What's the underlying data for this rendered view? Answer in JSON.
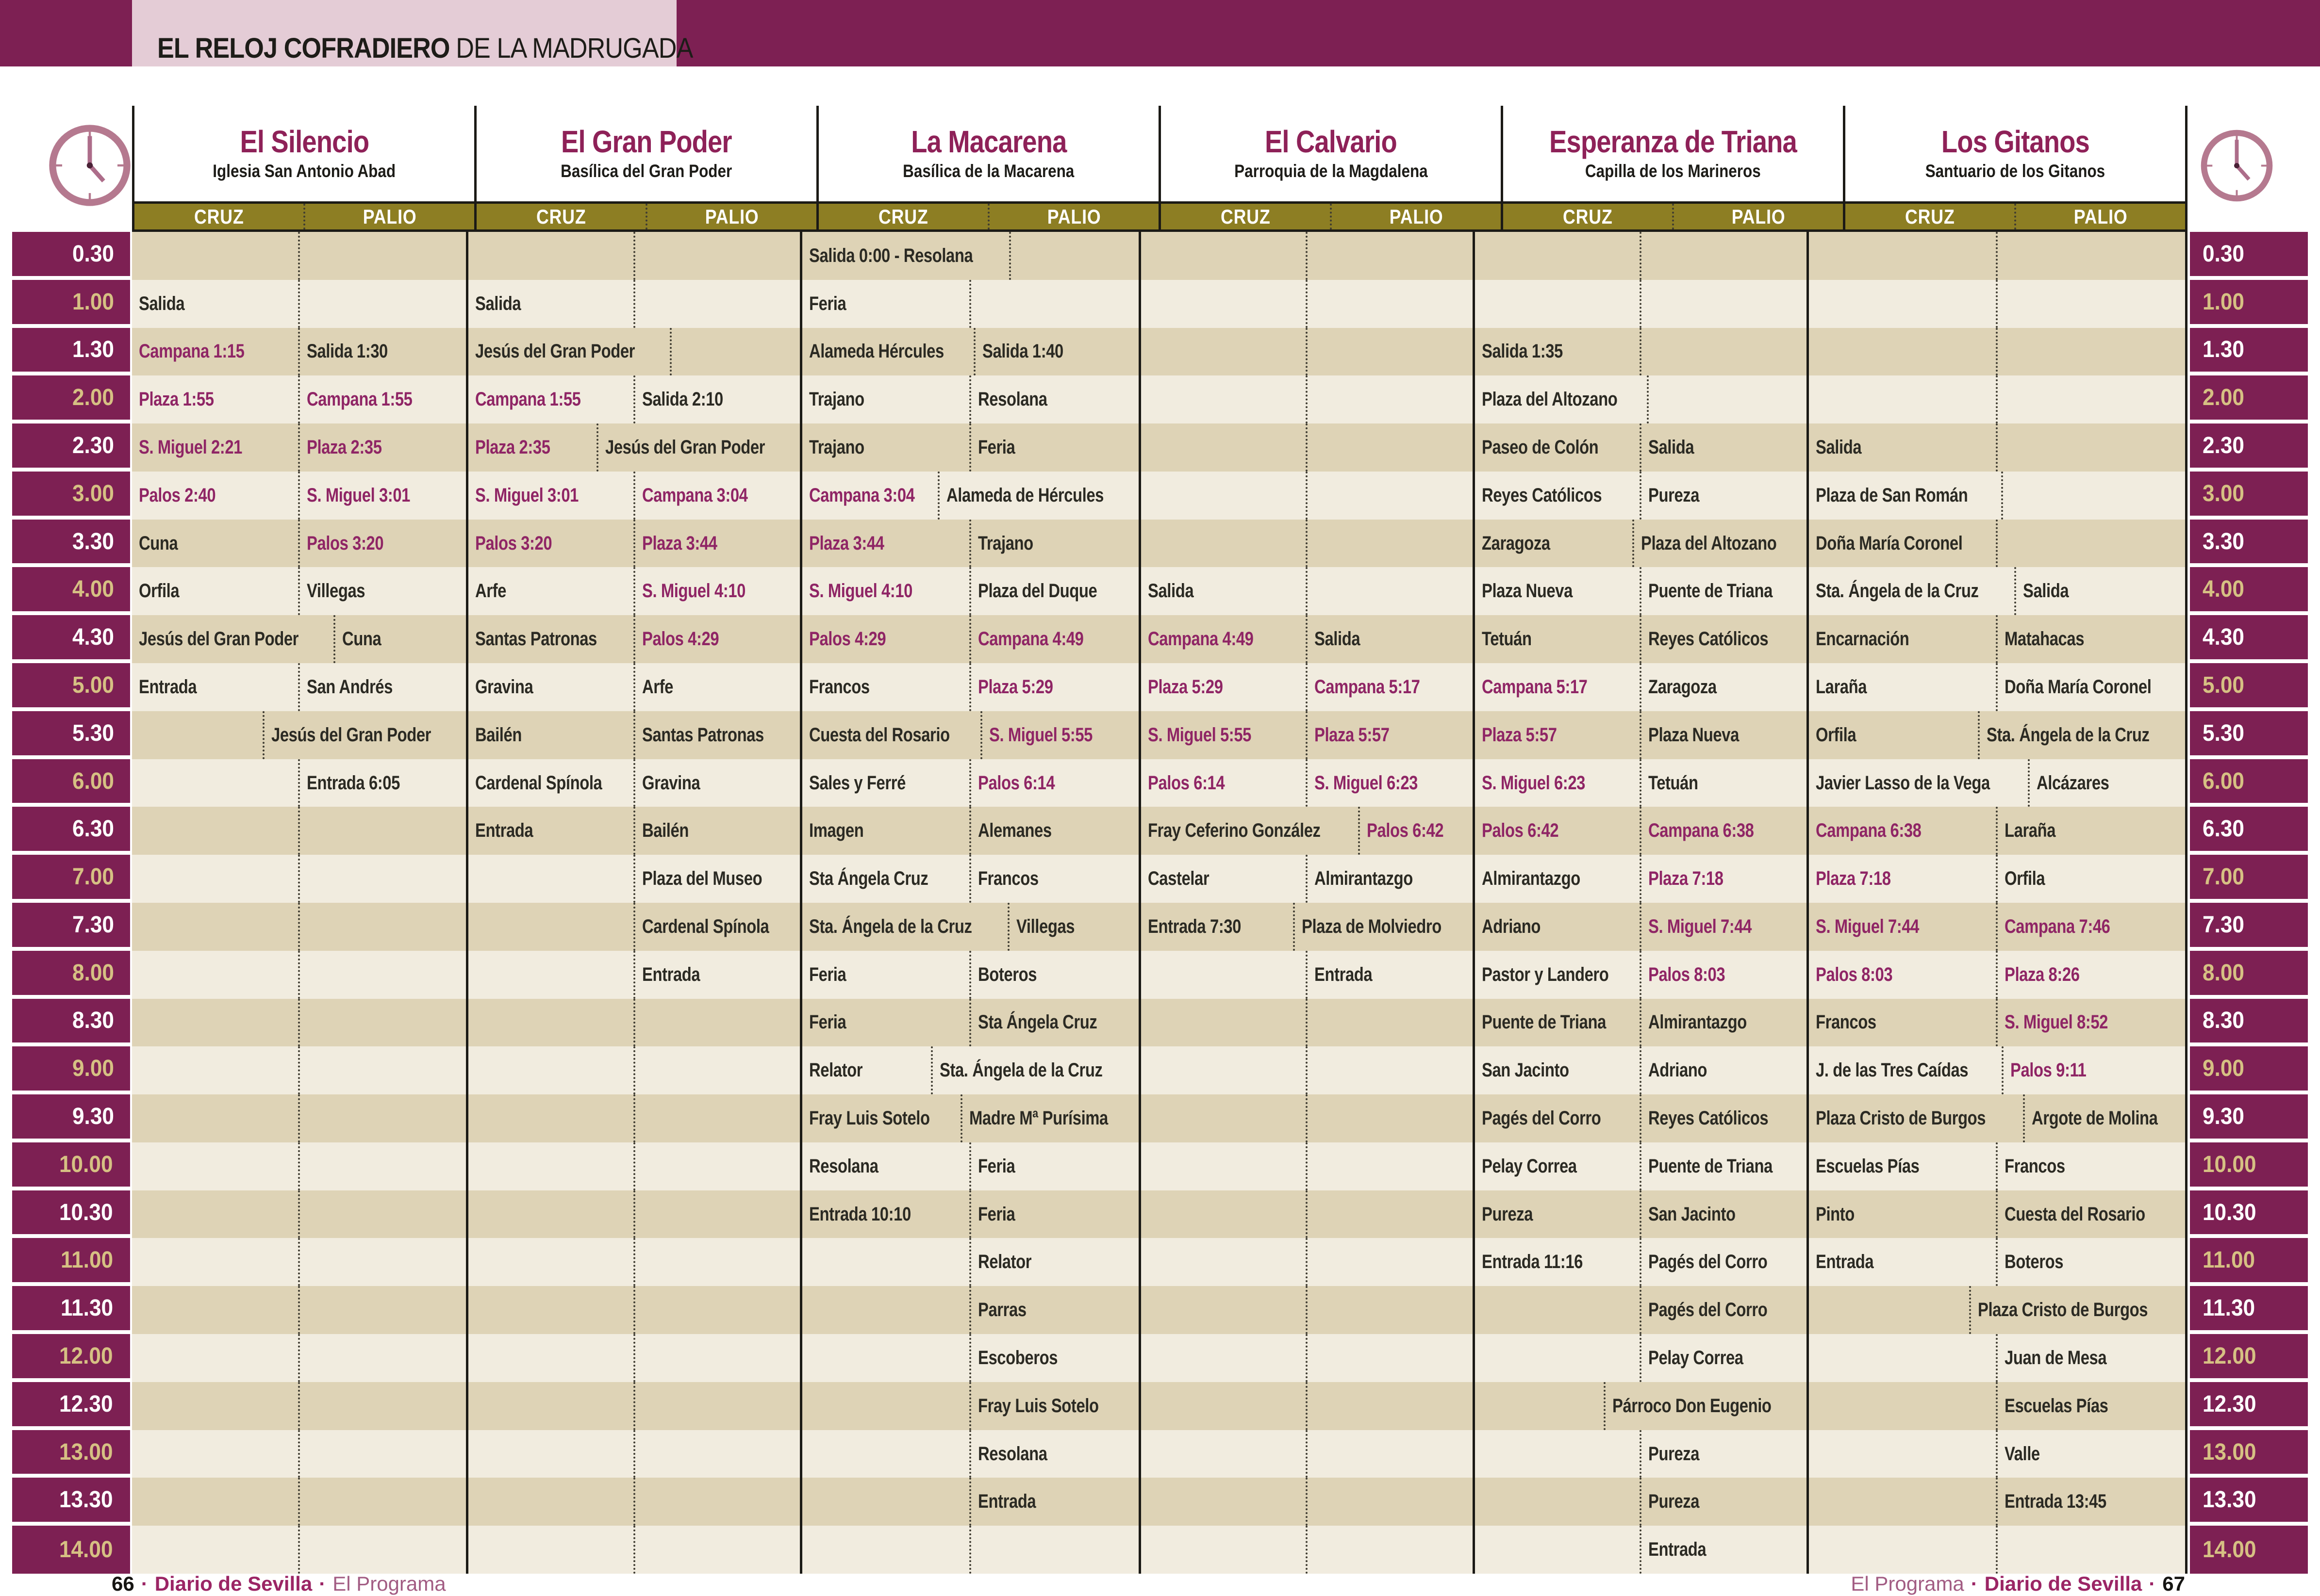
{
  "page_title": {
    "bold": "EL RELOJ COFRADIERO",
    "rest": "DE LA MADRUGADA"
  },
  "column_headers": {
    "cruz": "CRUZ",
    "palio": "PALIO"
  },
  "times": [
    "0.30",
    "1.00",
    "1.30",
    "2.00",
    "2.30",
    "3.00",
    "3.30",
    "4.00",
    "4.30",
    "5.00",
    "5.30",
    "6.00",
    "6.30",
    "7.00",
    "7.30",
    "8.00",
    "8.30",
    "9.00",
    "9.30",
    "10.00",
    "10.30",
    "11.00",
    "11.30",
    "12.00",
    "12.30",
    "13.00",
    "13.30",
    "14.00"
  ],
  "groups": [
    {
      "title": "El Silencio",
      "church": "Iglesia San Antonio Abad",
      "cruz": [
        "",
        "Salida",
        "Campana 1:15",
        "Plaza 1:55",
        "S. Miguel 2:21",
        "Palos 2:40",
        "Cuna",
        "Orfila",
        "Jesús del Gran Poder",
        "Entrada",
        "",
        "",
        "",
        "",
        "",
        "",
        "",
        "",
        "",
        "",
        "",
        "",
        "",
        "",
        "",
        "",
        "",
        ""
      ],
      "palio": [
        "",
        "",
        "Salida 1:30",
        "Campana 1:55",
        "Plaza 2:35",
        "S. Miguel 3:01",
        "Palos 3:20",
        "Villegas",
        "Cuna",
        "San Andrés",
        "Jesús del Gran Poder",
        "Entrada 6:05",
        "",
        "",
        "",
        "",
        "",
        "",
        "",
        "",
        "",
        "",
        "",
        "",
        "",
        "",
        "",
        ""
      ]
    },
    {
      "title": "El Gran Poder",
      "church": "Basílica del Gran Poder",
      "cruz": [
        "",
        "Salida",
        "Jesús del Gran Poder",
        "Campana 1:55",
        "Plaza 2:35",
        "S. Miguel 3:01",
        "Palos 3:20",
        "Arfe",
        "Santas Patronas",
        "Gravina",
        "Bailén",
        "Cardenal Spínola",
        "Entrada",
        "",
        "",
        "",
        "",
        "",
        "",
        "",
        "",
        "",
        "",
        "",
        "",
        "",
        "",
        ""
      ],
      "palio": [
        "",
        "",
        "",
        "Salida 2:10",
        "Jesús del Gran Poder",
        "Campana 3:04",
        "Plaza 3:44",
        "S. Miguel 4:10",
        "Palos 4:29",
        "Arfe",
        "Santas Patronas",
        "Gravina",
        "Bailén",
        "Plaza del Museo",
        "Cardenal Spínola",
        "Entrada",
        "",
        "",
        "",
        "",
        "",
        "",
        "",
        "",
        "",
        "",
        "",
        ""
      ]
    },
    {
      "title": "La Macarena",
      "church": "Basílica de la Macarena",
      "cruz": [
        "Salida 0:00 - Resolana",
        "Feria",
        "Alameda Hércules",
        "Trajano",
        "Trajano",
        "Campana 3:04",
        "Plaza 3:44",
        "S. Miguel 4:10",
        "Palos 4:29",
        "Francos",
        "Cuesta del Rosario",
        "Sales y Ferré",
        "Imagen",
        "Sta Ángela Cruz",
        "Sta. Ángela de la Cruz",
        "Feria",
        "Feria",
        "Relator",
        "Fray Luis Sotelo",
        "Resolana",
        "Entrada 10:10",
        "",
        "",
        "",
        "",
        "",
        "",
        ""
      ],
      "palio": [
        "",
        "",
        "Salida 1:40",
        "Resolana",
        "Feria",
        "Alameda de Hércules",
        "Trajano",
        "Plaza del Duque",
        "Campana 4:49",
        "Plaza 5:29",
        "S. Miguel 5:55",
        "Palos 6:14",
        "Alemanes",
        "Francos",
        "Villegas",
        "Boteros",
        "Sta Ángela Cruz",
        "Sta. Ángela de la Cruz",
        "Madre Mª Purísima",
        "Feria",
        "Feria",
        "Relator",
        "Parras",
        "Escoberos",
        "Fray Luis Sotelo",
        "Resolana",
        "Entrada",
        ""
      ]
    },
    {
      "title": "El Calvario",
      "church": "Parroquia de la Magdalena",
      "cruz": [
        "",
        "",
        "",
        "",
        "",
        "",
        "",
        "Salida",
        "Campana 4:49",
        "Plaza 5:29",
        "S. Miguel 5:55",
        "Palos 6:14",
        "Fray Ceferino González",
        "Castelar",
        "Entrada 7:30",
        "",
        "",
        "",
        "",
        "",
        "",
        "",
        "",
        "",
        "",
        "",
        "",
        ""
      ],
      "palio": [
        "",
        "",
        "",
        "",
        "",
        "",
        "",
        "",
        "Salida",
        "Campana 5:17",
        "Plaza 5:57",
        "S. Miguel 6:23",
        "Palos 6:42",
        "Almirantazgo",
        "Plaza de Molviedro",
        "Entrada",
        "",
        "",
        "",
        "",
        "",
        "",
        "",
        "",
        "",
        "",
        "",
        ""
      ]
    },
    {
      "title": "Esperanza de Triana",
      "church": "Capilla de los Marineros",
      "cruz": [
        "",
        "",
        "Salida 1:35",
        "Plaza del Altozano",
        "Paseo de Colón",
        "Reyes Católicos",
        "Zaragoza",
        "Plaza Nueva",
        "Tetuán",
        "Campana 5:17",
        "Plaza 5:57",
        "S. Miguel 6:23",
        "Palos 6:42",
        "Almirantazgo",
        "Adriano",
        "Pastor y Landero",
        "Puente de Triana",
        "San Jacinto",
        "Pagés del Corro",
        "Pelay Correa",
        "Pureza",
        "Entrada 11:16",
        "",
        "",
        "",
        "",
        "",
        ""
      ],
      "palio": [
        "",
        "",
        "",
        "",
        "Salida",
        "Pureza",
        "Plaza del Altozano",
        "Puente de Triana",
        "Reyes Católicos",
        "Zaragoza",
        "Plaza Nueva",
        "Tetuán",
        "Campana 6:38",
        "Plaza 7:18",
        "S. Miguel 7:44",
        "Palos 8:03",
        "Almirantazgo",
        "Adriano",
        "Reyes Católicos",
        "Puente de Triana",
        "San Jacinto",
        "Pagés del Corro",
        "Pagés del Corro",
        "Pelay Correa",
        "Párroco Don Eugenio",
        "Pureza",
        "Pureza",
        "Entrada"
      ]
    },
    {
      "title": "Los Gitanos",
      "church": "Santuario de los Gitanos",
      "cruz": [
        "",
        "",
        "",
        "",
        "Salida",
        "Plaza de San Román",
        "Doña María Coronel",
        "Sta. Ángela de la Cruz",
        "Encarnación",
        "Laraña",
        "Orfila",
        "Javier Lasso de la Vega",
        "Campana 6:38",
        "Plaza 7:18",
        "S. Miguel 7:44",
        "Palos 8:03",
        "Francos",
        "J. de las Tres Caídas",
        "Plaza Cristo de Burgos",
        "Escuelas Pías",
        "Pinto",
        "Entrada",
        "",
        "",
        "",
        "",
        "",
        ""
      ],
      "palio": [
        "",
        "",
        "",
        "",
        "",
        "",
        "",
        "Salida",
        "Matahacas",
        "Doña María Coronel",
        "Sta. Ángela de la Cruz",
        "Alcázares",
        "Laraña",
        "Orfila",
        "Campana 7:46",
        "Plaza 8:26",
        "S. Miguel 8:52",
        "Palos 9:11",
        "Argote de Molina",
        "Francos",
        "Cuesta del Rosario",
        "Boteros",
        "Plaza Cristo de Burgos",
        "Juan de Mesa",
        "Escuelas Pías",
        "Valle",
        "Entrada 13:45",
        ""
      ]
    }
  ],
  "footer": {
    "separator": "·",
    "left": {
      "page": "66",
      "brand": "Diario de Sevilla",
      "program": "El Programa"
    },
    "right": {
      "program": "El Programa",
      "brand": "Diario de Sevilla",
      "page": "67"
    }
  },
  "colors": {
    "maroon": "#7d2053",
    "highlight": "#8f2565",
    "olive": "#8d7e23",
    "stripe_dark": "#ded3b6",
    "stripe_light": "#f1ecdf",
    "gold": "#d6c083",
    "title_maroon": "#8e2158",
    "pink": "#e4ccd6",
    "ink": "#2b2a23",
    "clock": "#b5798f",
    "brand": "#9b2565",
    "program": "#a25c83"
  }
}
